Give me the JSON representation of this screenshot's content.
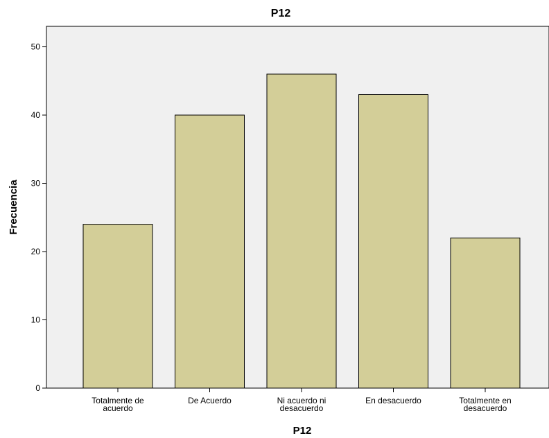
{
  "chart_data": {
    "type": "bar",
    "title": "P12",
    "xlabel": "P12",
    "ylabel": "Frecuencia",
    "categories": [
      [
        "Totalmente de",
        "acuerdo"
      ],
      [
        "De Acuerdo"
      ],
      [
        "Ni acuerdo ni",
        "desacuerdo"
      ],
      [
        "En desacuerdo"
      ],
      [
        "Totalmente en",
        "desacuerdo"
      ]
    ],
    "values": [
      24,
      40,
      46,
      43,
      22
    ],
    "ylim": [
      0,
      53
    ],
    "yticks": [
      0,
      10,
      20,
      30,
      40,
      50
    ],
    "grid": false,
    "colors": {
      "plot_background": "#f0f0f0",
      "bar_fill": "#d3ce98",
      "bar_stroke": "#000000",
      "axis": "#000000"
    }
  }
}
